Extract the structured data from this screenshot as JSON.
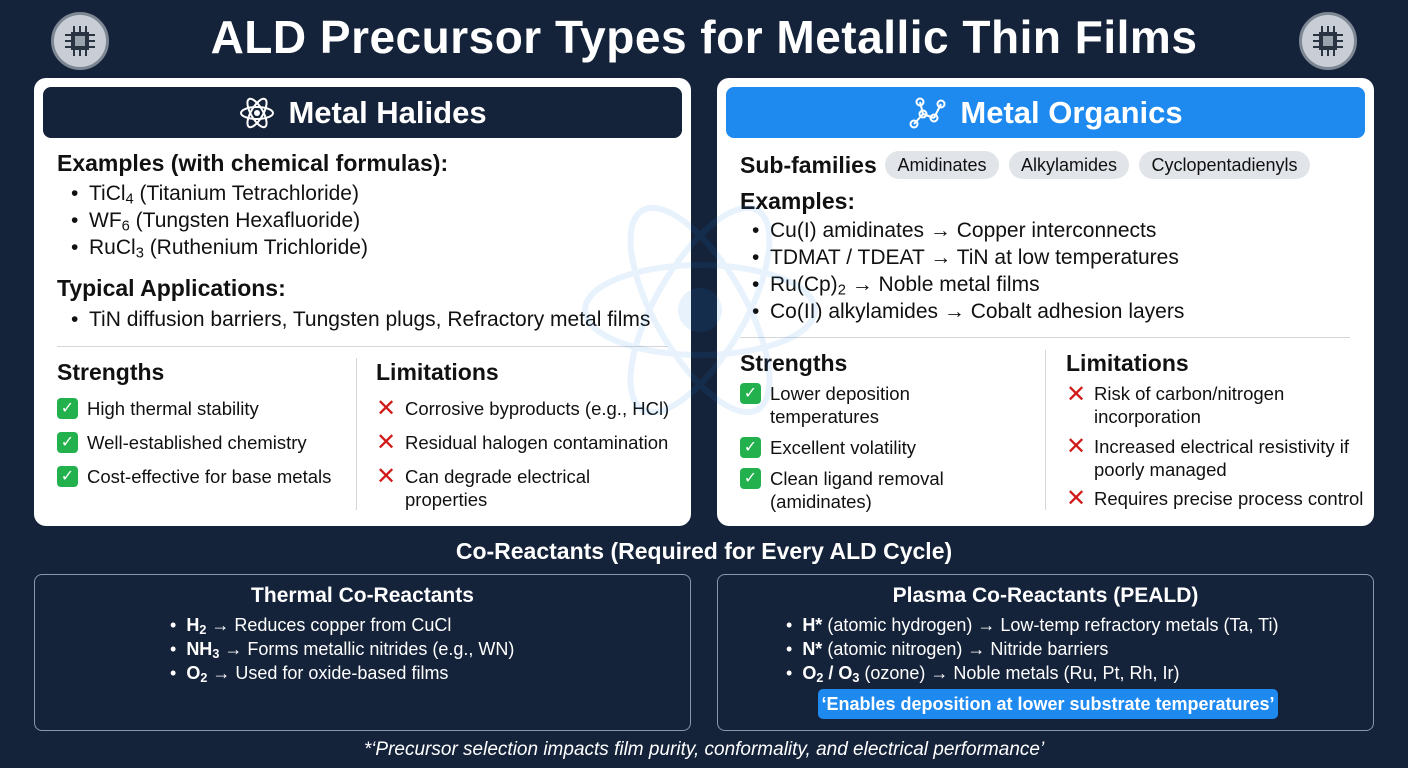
{
  "title": "ALD Precursor Types for Metallic Thin Films",
  "icons": {
    "chip": "cpu-chip-icon",
    "atom": "atom-icon",
    "molecule": "molecule-icon",
    "check": "check-icon",
    "cross": "cross-icon"
  },
  "colors": {
    "background": "#15233a",
    "halides_header": "#142339",
    "organics_header": "#1e8af0",
    "check": "#22b14c",
    "cross": "#d11a1a"
  },
  "halides": {
    "header": "Metal Halides",
    "examples_heading": "Examples (with chemical formulas):",
    "examples": [
      {
        "formula": "TiCl",
        "sub": "4",
        "name": " (Titanium Tetrachloride)"
      },
      {
        "formula": "WF",
        "sub": "6",
        "name": " (Tungsten Hexafluoride)"
      },
      {
        "formula": "RuCl",
        "sub": "3",
        "name": " (Ruthenium Trichloride)"
      }
    ],
    "applications_heading": "Typical Applications:",
    "applications": "TiN diffusion barriers, Tungsten plugs, Refractory metal films",
    "strengths_heading": "Strengths",
    "strengths": [
      "High thermal stability",
      "Well-established chemistry",
      "Cost-effective for base metals"
    ],
    "limitations_heading": "Limitations",
    "limitations": [
      "Corrosive byproducts (e.g., HCl)",
      "Residual halogen contamination",
      "Can degrade electrical properties"
    ]
  },
  "organics": {
    "header": "Metal Organics",
    "subfamilies_label": "Sub-families",
    "subfamilies": [
      "Amidinates",
      "Alkylamides",
      "Cyclopentadienyls"
    ],
    "examples_heading": "Examples:",
    "examples": [
      "Cu(I) amidinates → Copper interconnects",
      "TDMAT / TDEAT → TiN at low temperatures",
      "Co(II) alkylamides → Cobalt adhesion layers"
    ],
    "example_ru": {
      "pre": "Ru(Cp)",
      "sub": "2",
      "post": " → Noble metal films"
    },
    "strengths_heading": "Strengths",
    "strengths": [
      "Lower deposition temperatures",
      "Excellent volatility",
      "Clean ligand removal (amidinates)"
    ],
    "limitations_heading": "Limitations",
    "limitations": [
      "Risk of carbon/nitrogen incorporation",
      "Increased electrical resistivity if poorly managed",
      "Requires precise process control"
    ]
  },
  "coreactants": {
    "title": "Co-Reactants (Required for Every ALD Cycle)",
    "thermal": {
      "heading": "Thermal Co-Reactants",
      "items": [
        {
          "sym": "H",
          "sub": "2",
          "text": " → Reduces copper from CuCl"
        },
        {
          "sym": "NH",
          "sub": "3",
          "text": " → Forms metallic nitrides (e.g., WN)"
        },
        {
          "sym": "O",
          "sub": "2",
          "text": " → Used for oxide-based films"
        }
      ]
    },
    "plasma": {
      "heading": "Plasma Co-Reactants (PEALD)",
      "items": [
        {
          "sym": "H*",
          "text": " (atomic hydrogen) → Low-temp refractory metals (Ta, Ti)"
        },
        {
          "sym": "N*",
          "text": " (atomic nitrogen) → Nitride barriers"
        }
      ],
      "ozone": {
        "a": "O",
        "a_sub": "2",
        "sep": " / ",
        "b": "O",
        "b_sub": "3",
        "text": " (ozone) → Noble metals (Ru, Pt, Rh, Ir)"
      },
      "highlight": "‘Enables deposition at lower substrate temperatures’"
    }
  },
  "footer": "*‘Precursor selection impacts film purity, conformality, and electrical performance’"
}
